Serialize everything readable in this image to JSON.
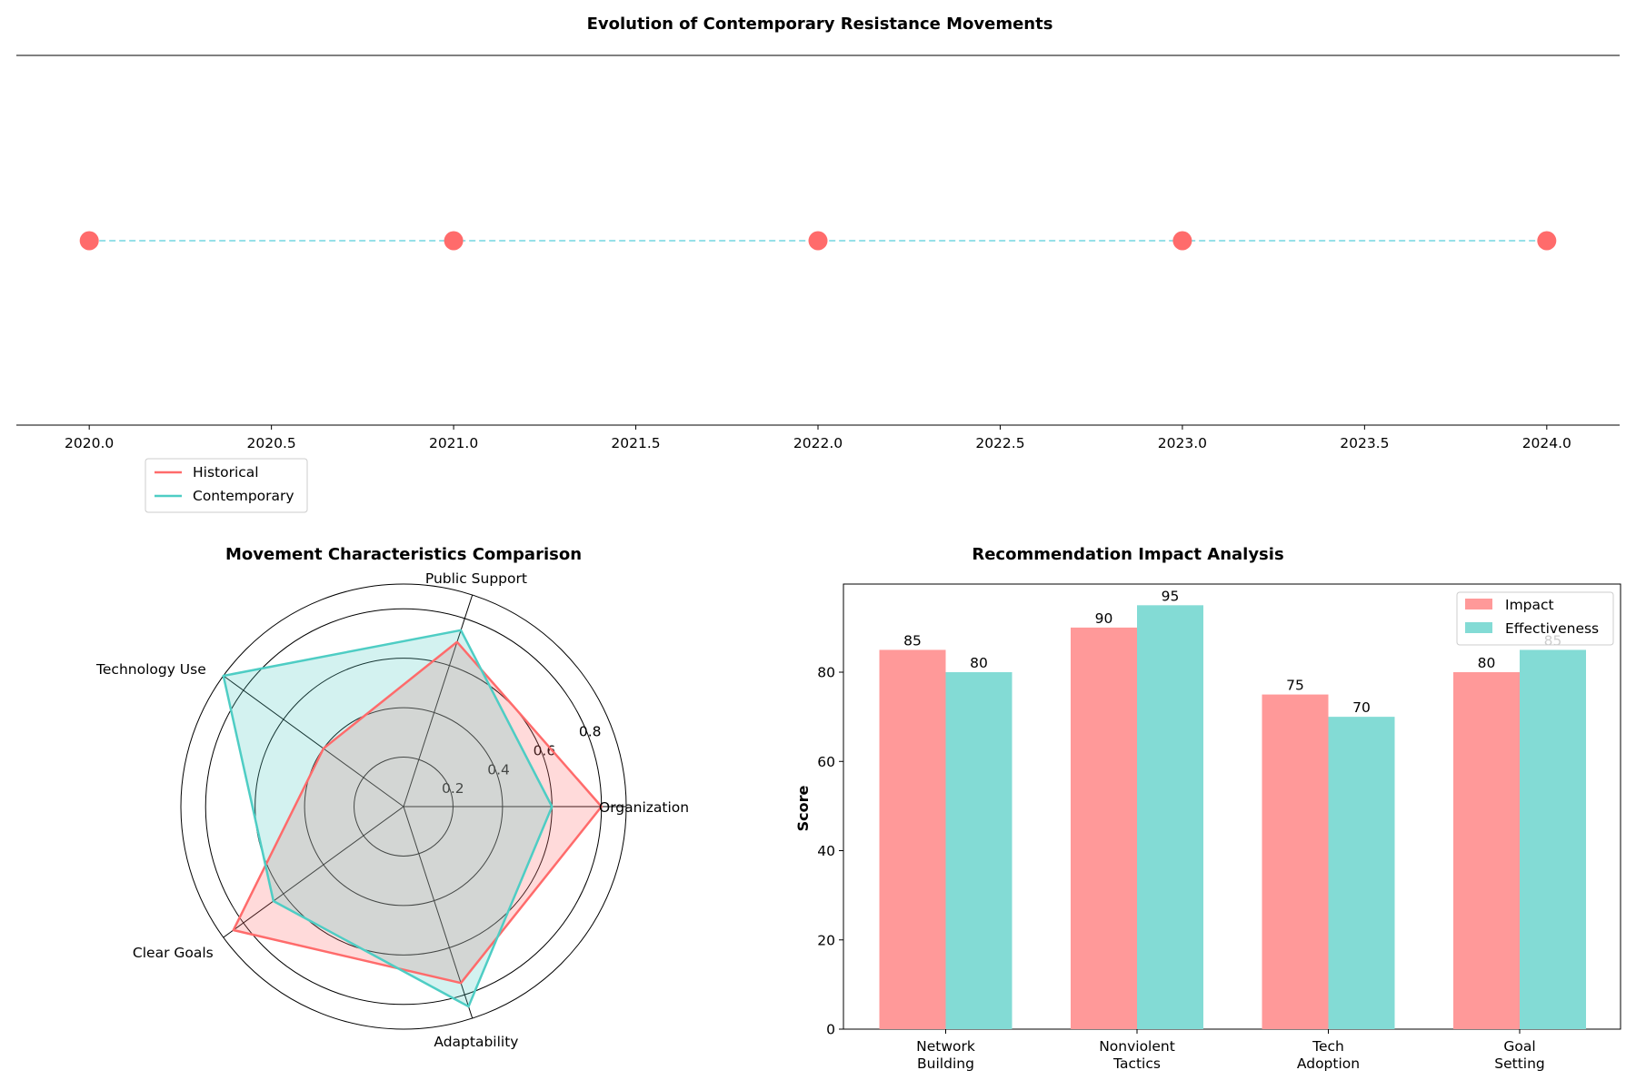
{
  "chart_data": [
    {
      "type": "line",
      "title": "Evolution of Contemporary Resistance Movements",
      "x": [
        2020,
        2021,
        2022,
        2023,
        2024
      ],
      "xticks": [
        "2020.0",
        "2020.5",
        "2021.0",
        "2021.5",
        "2022.0",
        "2022.5",
        "2023.0",
        "2023.5",
        "2024.0"
      ],
      "xlim": [
        2019.8,
        2024.2
      ],
      "point_color": "#FF6B6B",
      "line_color": "#96E0E8",
      "line_style": "dashed",
      "grid": false,
      "legend": {
        "placement": "below-left",
        "entries": [
          {
            "label": "Historical",
            "color": "#FF6B6B"
          },
          {
            "label": "Contemporary",
            "color": "#4ECDC4"
          }
        ]
      }
    },
    {
      "type": "radar",
      "title": "Movement Characteristics Comparison",
      "axes": [
        "Organization",
        "Public Support",
        "Technology Use",
        "Clear Goals",
        "Adaptability"
      ],
      "rlim": [
        0,
        0.9
      ],
      "rticks": [
        "0.2",
        "0.4",
        "0.6",
        "0.8"
      ],
      "series": [
        {
          "name": "Historical",
          "color": "#FF6B6B",
          "values": [
            0.8,
            0.7,
            0.4,
            0.85,
            0.75
          ]
        },
        {
          "name": "Contemporary",
          "color": "#4ECDC4",
          "values": [
            0.6,
            0.75,
            0.9,
            0.65,
            0.85
          ]
        }
      ]
    },
    {
      "type": "bar",
      "title": "Recommendation Impact Analysis",
      "categories": [
        "Network\nBuilding",
        "Nonviolent\nTactics",
        "Tech\nAdoption",
        "Goal\nSetting"
      ],
      "ylabel": "Score",
      "ylim": [
        0,
        99.75
      ],
      "yticks": [
        0,
        20,
        40,
        60,
        80
      ],
      "legend_placement": "top-right",
      "series": [
        {
          "name": "Impact",
          "color": "#FF9999",
          "values": [
            85,
            90,
            75,
            80
          ]
        },
        {
          "name": "Effectiveness",
          "color": "#83DBD5",
          "values": [
            80,
            95,
            70,
            85
          ]
        }
      ]
    }
  ]
}
